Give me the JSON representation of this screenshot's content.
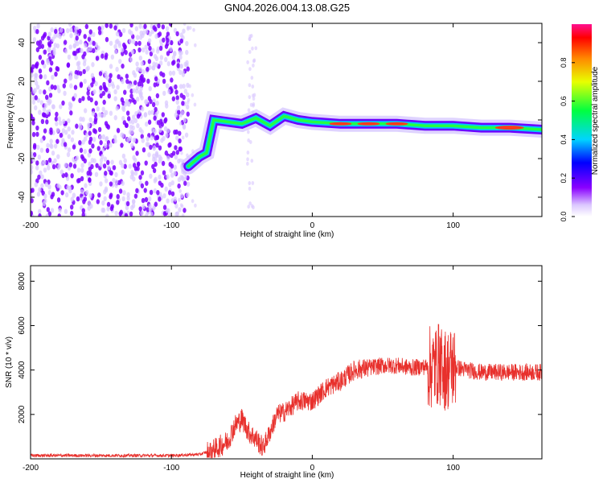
{
  "title": "GN04.2026.004.13.08.G25",
  "colors": {
    "snr_line": "#e8302c",
    "points": "#7b00ff",
    "points_light": "#d9c7ff",
    "axis": "#000000",
    "background": "#ffffff"
  },
  "chart_data": [
    {
      "type": "heatmap",
      "title": "GN04.2026.004.13.08.G25",
      "xlabel": "Height of straight line (km)",
      "ylabel": "Frequency (Hz)",
      "xlim": [
        -200,
        163
      ],
      "ylim": [
        -50,
        50
      ],
      "x_ticks": [
        -200,
        -100,
        0,
        100
      ],
      "x_tick_labels": [
        "-200",
        "-100",
        "0",
        "100"
      ],
      "y_ticks": [
        -40,
        -20,
        0,
        20,
        40
      ],
      "y_tick_labels": [
        "-40",
        "-20",
        "0",
        "20",
        "40"
      ],
      "colorbar": {
        "label": "Normalized spectral amplitude",
        "range": [
          0,
          1
        ],
        "ticks": [
          0.0,
          0.2,
          0.4,
          0.6,
          0.8
        ],
        "tick_labels": [
          "0.0",
          "0.2",
          "0.4",
          "0.6",
          "0.8"
        ]
      },
      "ridge": {
        "x": [
          -88,
          -80,
          -75,
          -70,
          -60,
          -50,
          -40,
          -30,
          -20,
          -10,
          0,
          20,
          40,
          60,
          80,
          100,
          120,
          140,
          163
        ],
        "y": [
          -24,
          -19,
          -17,
          0,
          -1,
          -2,
          1,
          -3,
          2,
          0,
          -1,
          -2,
          -2,
          -2,
          -3,
          -3,
          -4,
          -4,
          -5
        ]
      }
    },
    {
      "type": "line",
      "title": "",
      "xlabel": "Height of straight line (km)",
      "ylabel": "SNR (10 * v/v)",
      "xlim": [
        -200,
        163
      ],
      "ylim": [
        0,
        8700
      ],
      "x_ticks": [
        -200,
        -100,
        0,
        100
      ],
      "x_tick_labels": [
        "-200",
        "-100",
        "0",
        "100"
      ],
      "y_ticks": [
        2000,
        4000,
        6000,
        8000
      ],
      "y_tick_labels": [
        "2000",
        "4000",
        "6000",
        "8000"
      ],
      "series": [
        {
          "name": "SNR",
          "x": [
            -200,
            -150,
            -100,
            -80,
            -70,
            -60,
            -55,
            -50,
            -45,
            -40,
            -35,
            -30,
            -25,
            -20,
            -10,
            0,
            10,
            20,
            30,
            40,
            50,
            60,
            70,
            80,
            85,
            90,
            95,
            100,
            110,
            120,
            140,
            163
          ],
          "y": [
            150,
            150,
            150,
            200,
            400,
            800,
            1500,
            1800,
            1200,
            900,
            500,
            1200,
            2000,
            2100,
            2600,
            2600,
            3200,
            3500,
            4000,
            4100,
            4200,
            4200,
            4100,
            4150,
            4100,
            4300,
            4000,
            4150,
            4000,
            3900,
            3900,
            3900
          ]
        }
      ]
    }
  ]
}
